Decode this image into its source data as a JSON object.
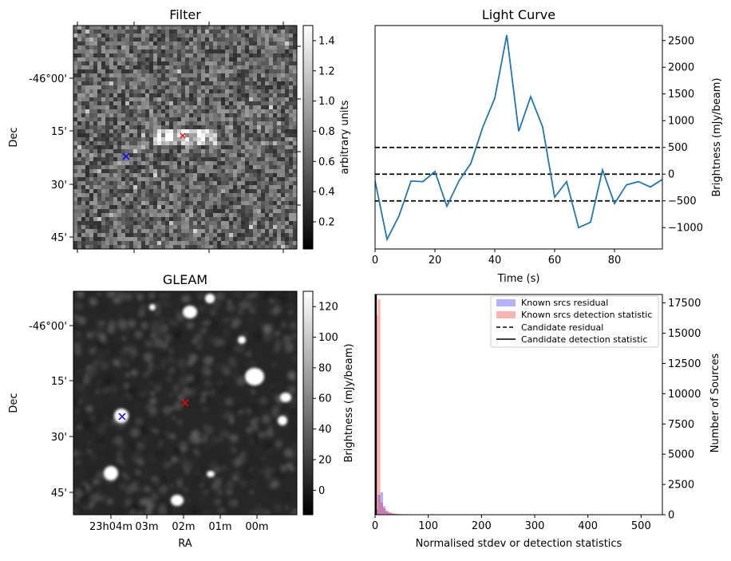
{
  "chart_data": [
    {
      "type": "heatmap",
      "title": "Filter",
      "xlabel": "",
      "ylabel": "Dec",
      "y_ticks": [
        "-46°00'",
        "15'",
        "30'",
        "45'"
      ],
      "colorbar": {
        "label": "arbitrary units",
        "ticks": [
          "0.2",
          "0.4",
          "0.6",
          "0.8",
          "1.0",
          "1.2",
          "1.4"
        ],
        "range": [
          0.02,
          1.5
        ],
        "cmap": "gray"
      },
      "markers": [
        {
          "name": "target",
          "symbol": "x",
          "color": "#ff0000"
        },
        {
          "name": "nearby source",
          "symbol": "x",
          "color": "#0000ff"
        }
      ]
    },
    {
      "type": "line",
      "title": "Light Curve",
      "xlabel": "Time (s)",
      "ylabel": "Brightness (mJy/beam)",
      "xlim": [
        0,
        96
      ],
      "ylim": [
        -1400,
        2780
      ],
      "x_ticks": [
        "0",
        "20",
        "40",
        "60",
        "80"
      ],
      "y_ticks": [
        "−1000",
        "−500",
        "0",
        "500",
        "1000",
        "1500",
        "2000",
        "2500"
      ],
      "series": [
        {
          "color": "#1f77b4",
          "x": [
            0,
            4,
            8,
            12,
            16,
            20,
            24,
            28,
            32,
            36,
            40,
            44,
            48,
            52,
            56,
            60,
            64,
            68,
            72,
            76,
            80,
            84,
            88,
            92,
            96
          ],
          "y": [
            -130,
            -1220,
            -780,
            -130,
            -140,
            50,
            -600,
            -130,
            200,
            880,
            1420,
            2600,
            800,
            1450,
            880,
            -430,
            -140,
            -1000,
            -900,
            80,
            -550,
            -200,
            -140,
            -240,
            -100
          ]
        }
      ],
      "hlines": [
        {
          "y": 500,
          "style": "dashed",
          "color": "#000000"
        },
        {
          "y": 0,
          "style": "dashed",
          "color": "#000000"
        },
        {
          "y": -500,
          "style": "dashed",
          "color": "#000000"
        }
      ]
    },
    {
      "type": "heatmap",
      "title": "GLEAM",
      "xlabel": "RA",
      "ylabel": "Dec",
      "x_ticks": [
        "23h04m",
        "03m",
        "02m",
        "01m",
        "00m"
      ],
      "y_ticks": [
        "-46°00'",
        "15'",
        "30'",
        "45'"
      ],
      "colorbar": {
        "label": "Brightness (mJy/beam)",
        "ticks": [
          "0",
          "20",
          "40",
          "60",
          "80",
          "100",
          "120"
        ],
        "range": [
          -16,
          130
        ],
        "cmap": "gray"
      },
      "markers": [
        {
          "name": "target",
          "symbol": "x",
          "color": "#ff0000"
        },
        {
          "name": "nearby source",
          "symbol": "x",
          "color": "#0000ff"
        }
      ]
    },
    {
      "type": "bar",
      "title": "",
      "xlabel": "Normalised stdev or detection statistics",
      "ylabel": "Number of Sources",
      "xlim": [
        0,
        540
      ],
      "ylim": [
        0,
        18200
      ],
      "x_ticks": [
        "0",
        "100",
        "200",
        "300",
        "400",
        "500"
      ],
      "y_ticks": [
        "0",
        "2500",
        "5000",
        "7500",
        "10000",
        "12500",
        "15000",
        "17500"
      ],
      "bin_width": 5,
      "series": [
        {
          "name": "Known srcs residual",
          "color": "#0000ff",
          "alpha": 0.3,
          "bins": [
            [
              0,
              450
            ],
            [
              5,
              1650
            ],
            [
              10,
              1850
            ],
            [
              15,
              700
            ],
            [
              20,
              300
            ],
            [
              25,
              150
            ],
            [
              30,
              100
            ],
            [
              35,
              60
            ],
            [
              40,
              40
            ],
            [
              45,
              30
            ],
            [
              50,
              20
            ]
          ]
        },
        {
          "name": "Known srcs detection statistic",
          "color": "#ff0000",
          "alpha": 0.3,
          "bins": [
            [
              0,
              16500
            ],
            [
              5,
              17800
            ],
            [
              10,
              1000
            ],
            [
              15,
              500
            ],
            [
              20,
              300
            ],
            [
              25,
              200
            ],
            [
              30,
              150
            ],
            [
              35,
              100
            ],
            [
              40,
              80
            ],
            [
              45,
              60
            ],
            [
              50,
              40
            ],
            [
              60,
              30
            ],
            [
              70,
              20
            ],
            [
              80,
              20
            ],
            [
              100,
              15
            ],
            [
              120,
              10
            ],
            [
              140,
              10
            ],
            [
              160,
              8
            ],
            [
              180,
              8
            ],
            [
              200,
              10
            ],
            [
              220,
              6
            ],
            [
              240,
              8
            ],
            [
              260,
              5
            ],
            [
              280,
              6
            ],
            [
              300,
              8
            ],
            [
              320,
              5
            ],
            [
              340,
              4
            ],
            [
              400,
              4
            ],
            [
              500,
              3
            ]
          ]
        }
      ],
      "lines": [
        {
          "name": "Candidate residual",
          "style": "dashed",
          "color": "#000000",
          "x": 1
        },
        {
          "name": "Candidate detection statistic",
          "style": "solid",
          "color": "#000000",
          "x": 2
        }
      ],
      "legend": "top-right"
    }
  ]
}
